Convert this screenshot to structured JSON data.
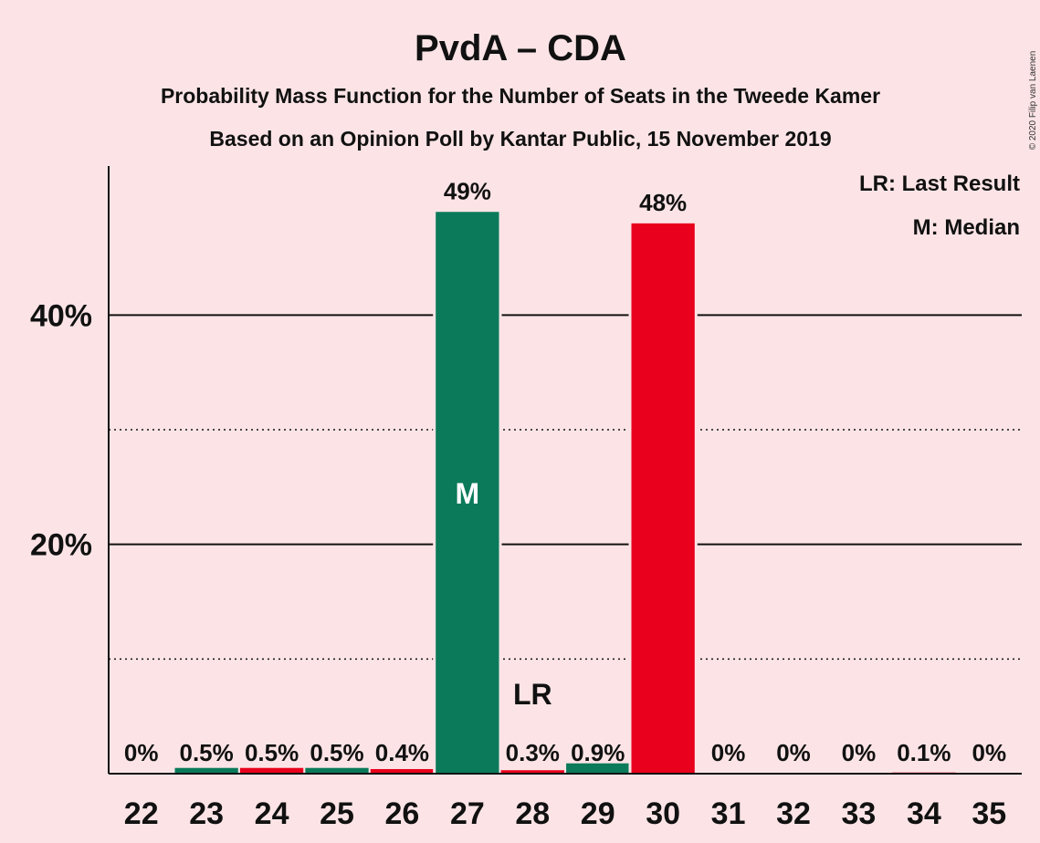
{
  "chart_data": {
    "type": "bar",
    "title": "PvdA – CDA",
    "subtitle": "Probability Mass Function for the Number of Seats in the Tweede Kamer",
    "subtitle2": "Based on an Opinion Poll by Kantar Public, 15 November 2019",
    "copyright": "© 2020 Filip van Laenen",
    "legend": [
      "LR: Last Result",
      "M: Median"
    ],
    "legend_position": "top-right",
    "categories": [
      "22",
      "23",
      "24",
      "25",
      "26",
      "27",
      "28",
      "29",
      "30",
      "31",
      "32",
      "33",
      "34",
      "35"
    ],
    "values": [
      0,
      0.5,
      0.5,
      0.5,
      0.4,
      49,
      0.3,
      0.9,
      48,
      0,
      0,
      0,
      0.1,
      0
    ],
    "value_labels": [
      "0%",
      "0.5%",
      "0.5%",
      "0.5%",
      "0.4%",
      "49%",
      "0.3%",
      "0.9%",
      "48%",
      "0%",
      "0%",
      "0%",
      "0.1%",
      "0%"
    ],
    "bar_colors": [
      "#0a7a5a",
      "#0a7a5a",
      "#e8001c",
      "#0a7a5a",
      "#e8001c",
      "#0a7a5a",
      "#e8001c",
      "#0a7a5a",
      "#e8001c",
      "#0a7a5a",
      "#e8001c",
      "#0a7a5a",
      "#e8001c",
      "#0a7a5a"
    ],
    "median_category": "27",
    "median_marker": "M",
    "last_result_category": "28",
    "last_result_marker": "LR",
    "ylim": [
      0,
      53
    ],
    "yticks_labeled": [
      {
        "value": 20,
        "label": "20%"
      },
      {
        "value": 40,
        "label": "40%"
      }
    ],
    "minor_gridlines": [
      10,
      30
    ],
    "grid": true,
    "colors": {
      "green": "#0a7a5a",
      "red": "#e8001c",
      "background": "#fce4e6"
    }
  }
}
